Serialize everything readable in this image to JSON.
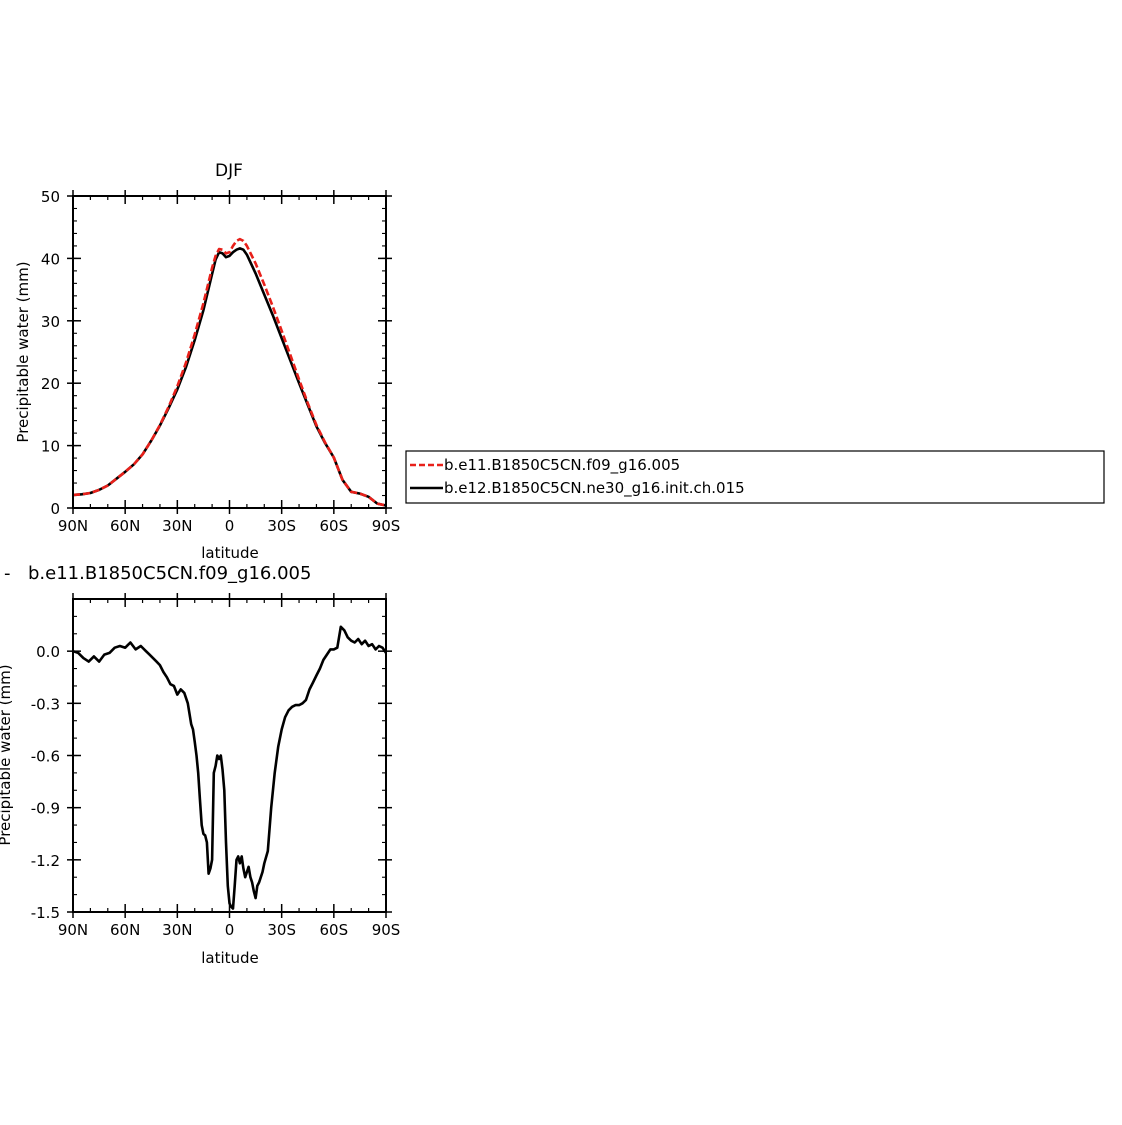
{
  "chart_data": [
    {
      "type": "line",
      "title": "DJF",
      "xlabel": "latitude",
      "ylabel": "Precipitable water (mm)",
      "xlim": [
        90,
        -90
      ],
      "ylim": [
        0,
        50
      ],
      "x_ticks": [
        90,
        60,
        30,
        0,
        -30,
        -60,
        -90
      ],
      "x_tick_labels": [
        "90N",
        "60N",
        "30N",
        "0",
        "30S",
        "60S",
        "90S"
      ],
      "y_ticks": [
        0,
        10,
        20,
        30,
        40,
        50
      ],
      "y_tick_labels": [
        "0",
        "10",
        "20",
        "30",
        "40",
        "50"
      ],
      "legend": "right, outside plot",
      "series": [
        {
          "name": "b.e11.B1850C5CN.f09_g16.005",
          "color": "#e8201a",
          "dash": "dashed",
          "x": [
            90,
            85,
            80,
            75,
            70,
            65,
            60,
            55,
            50,
            45,
            40,
            35,
            30,
            25,
            20,
            15,
            10,
            8,
            6,
            4,
            2,
            0,
            -2,
            -4,
            -6,
            -8,
            -10,
            -15,
            -20,
            -25,
            -30,
            -35,
            -40,
            -45,
            -50,
            -55,
            -60,
            -65,
            -70,
            -75,
            -80,
            -85,
            -90
          ],
          "y": [
            2.1,
            2.2,
            2.4,
            2.9,
            3.6,
            4.7,
            5.8,
            7.0,
            8.6,
            10.8,
            13.3,
            16.2,
            19.5,
            23.3,
            27.8,
            32.8,
            38.5,
            40.4,
            41.5,
            41.4,
            40.8,
            41.0,
            42.0,
            42.8,
            43.1,
            42.8,
            42.0,
            39.2,
            35.8,
            32.2,
            28.4,
            24.5,
            20.6,
            16.8,
            13.3,
            10.5,
            8.1,
            4.5,
            2.6,
            2.3,
            1.8,
            0.7,
            0.4
          ]
        },
        {
          "name": "b.e12.B1850C5CN.ne30_g16.init.ch.015",
          "color": "#000000",
          "dash": "solid",
          "x": [
            90,
            85,
            80,
            75,
            70,
            65,
            60,
            55,
            50,
            45,
            40,
            35,
            30,
            25,
            20,
            15,
            10,
            8,
            6,
            4,
            2,
            0,
            -2,
            -4,
            -6,
            -8,
            -10,
            -15,
            -20,
            -25,
            -30,
            -35,
            -40,
            -45,
            -50,
            -55,
            -60,
            -65,
            -70,
            -75,
            -80,
            -85,
            -90
          ],
          "y": [
            2.1,
            2.2,
            2.4,
            2.9,
            3.6,
            4.7,
            5.8,
            7.0,
            8.6,
            10.8,
            13.2,
            16.0,
            19.0,
            22.6,
            26.9,
            31.7,
            37.5,
            39.8,
            41.0,
            40.8,
            40.2,
            40.4,
            41.0,
            41.4,
            41.6,
            41.4,
            40.6,
            37.6,
            34.2,
            30.8,
            27.2,
            23.6,
            20.0,
            16.5,
            13.1,
            10.4,
            8.1,
            4.5,
            2.6,
            2.3,
            1.8,
            0.7,
            0.4
          ]
        }
      ]
    },
    {
      "type": "line",
      "title": "b.e11.B1850C5CN.f09_g16.005",
      "title_visible_prefix": "- ",
      "xlabel": "latitude",
      "ylabel": "Precipitable water (mm)",
      "xlim": [
        90,
        -90
      ],
      "ylim": [
        -1.5,
        0.3
      ],
      "x_ticks": [
        90,
        60,
        30,
        0,
        -30,
        -60,
        -90
      ],
      "x_tick_labels": [
        "90N",
        "60N",
        "30N",
        "0",
        "30S",
        "60S",
        "90S"
      ],
      "y_ticks": [
        -1.5,
        -1.2,
        -0.9,
        -0.6,
        -0.3,
        0.0
      ],
      "y_tick_labels": [
        "-1.5",
        "-1.2",
        "-0.9",
        "-0.6",
        "-0.3",
        "0.0"
      ],
      "series": [
        {
          "color": "#000000",
          "dash": "solid",
          "x": [
            90,
            87,
            84,
            81,
            78,
            75,
            72,
            69,
            66,
            63,
            60,
            57,
            54,
            51,
            48,
            46,
            44,
            42,
            40,
            38,
            36,
            34,
            32,
            30,
            28,
            26,
            24,
            22,
            21,
            20,
            19,
            18,
            17,
            16,
            15,
            14,
            13,
            12,
            11,
            10,
            9,
            8,
            7,
            6,
            5,
            4,
            3,
            2,
            1,
            0,
            -1,
            -2,
            -3,
            -4,
            -5,
            -6,
            -7,
            -8,
            -9,
            -10,
            -11,
            -12,
            -13,
            -14,
            -15,
            -16,
            -17,
            -18,
            -19,
            -20,
            -22,
            -24,
            -26,
            -28,
            -30,
            -32,
            -34,
            -36,
            -38,
            -40,
            -42,
            -44,
            -46,
            -48,
            -50,
            -52,
            -54,
            -56,
            -58,
            -60,
            -62,
            -64,
            -66,
            -68,
            -70,
            -72,
            -74,
            -76,
            -78,
            -80,
            -82,
            -84,
            -86,
            -88,
            -90
          ],
          "y": [
            0.0,
            -0.01,
            -0.04,
            -0.06,
            -0.03,
            -0.06,
            -0.02,
            -0.01,
            0.02,
            0.03,
            0.02,
            0.05,
            0.01,
            0.03,
            0.0,
            -0.02,
            -0.04,
            -0.06,
            -0.08,
            -0.12,
            -0.15,
            -0.19,
            -0.2,
            -0.25,
            -0.22,
            -0.24,
            -0.3,
            -0.42,
            -0.45,
            -0.52,
            -0.6,
            -0.7,
            -0.85,
            -1.0,
            -1.05,
            -1.06,
            -1.1,
            -1.28,
            -1.25,
            -1.2,
            -0.7,
            -0.66,
            -0.6,
            -0.62,
            -0.6,
            -0.68,
            -0.8,
            -1.1,
            -1.35,
            -1.45,
            -1.47,
            -1.48,
            -1.35,
            -1.2,
            -1.18,
            -1.22,
            -1.18,
            -1.25,
            -1.3,
            -1.27,
            -1.24,
            -1.3,
            -1.33,
            -1.38,
            -1.42,
            -1.35,
            -1.33,
            -1.3,
            -1.27,
            -1.22,
            -1.15,
            -0.9,
            -0.7,
            -0.55,
            -0.45,
            -0.38,
            -0.34,
            -0.32,
            -0.31,
            -0.31,
            -0.3,
            -0.28,
            -0.22,
            -0.18,
            -0.14,
            -0.1,
            -0.05,
            -0.02,
            0.01,
            0.01,
            0.02,
            0.14,
            0.12,
            0.08,
            0.06,
            0.05,
            0.07,
            0.04,
            0.06,
            0.03,
            0.04,
            0.01,
            0.03,
            0.02,
            -0.01
          ]
        }
      ]
    }
  ],
  "colors": {
    "axis": "#000000",
    "series_red": "#e8201a",
    "series_black": "#000000"
  }
}
